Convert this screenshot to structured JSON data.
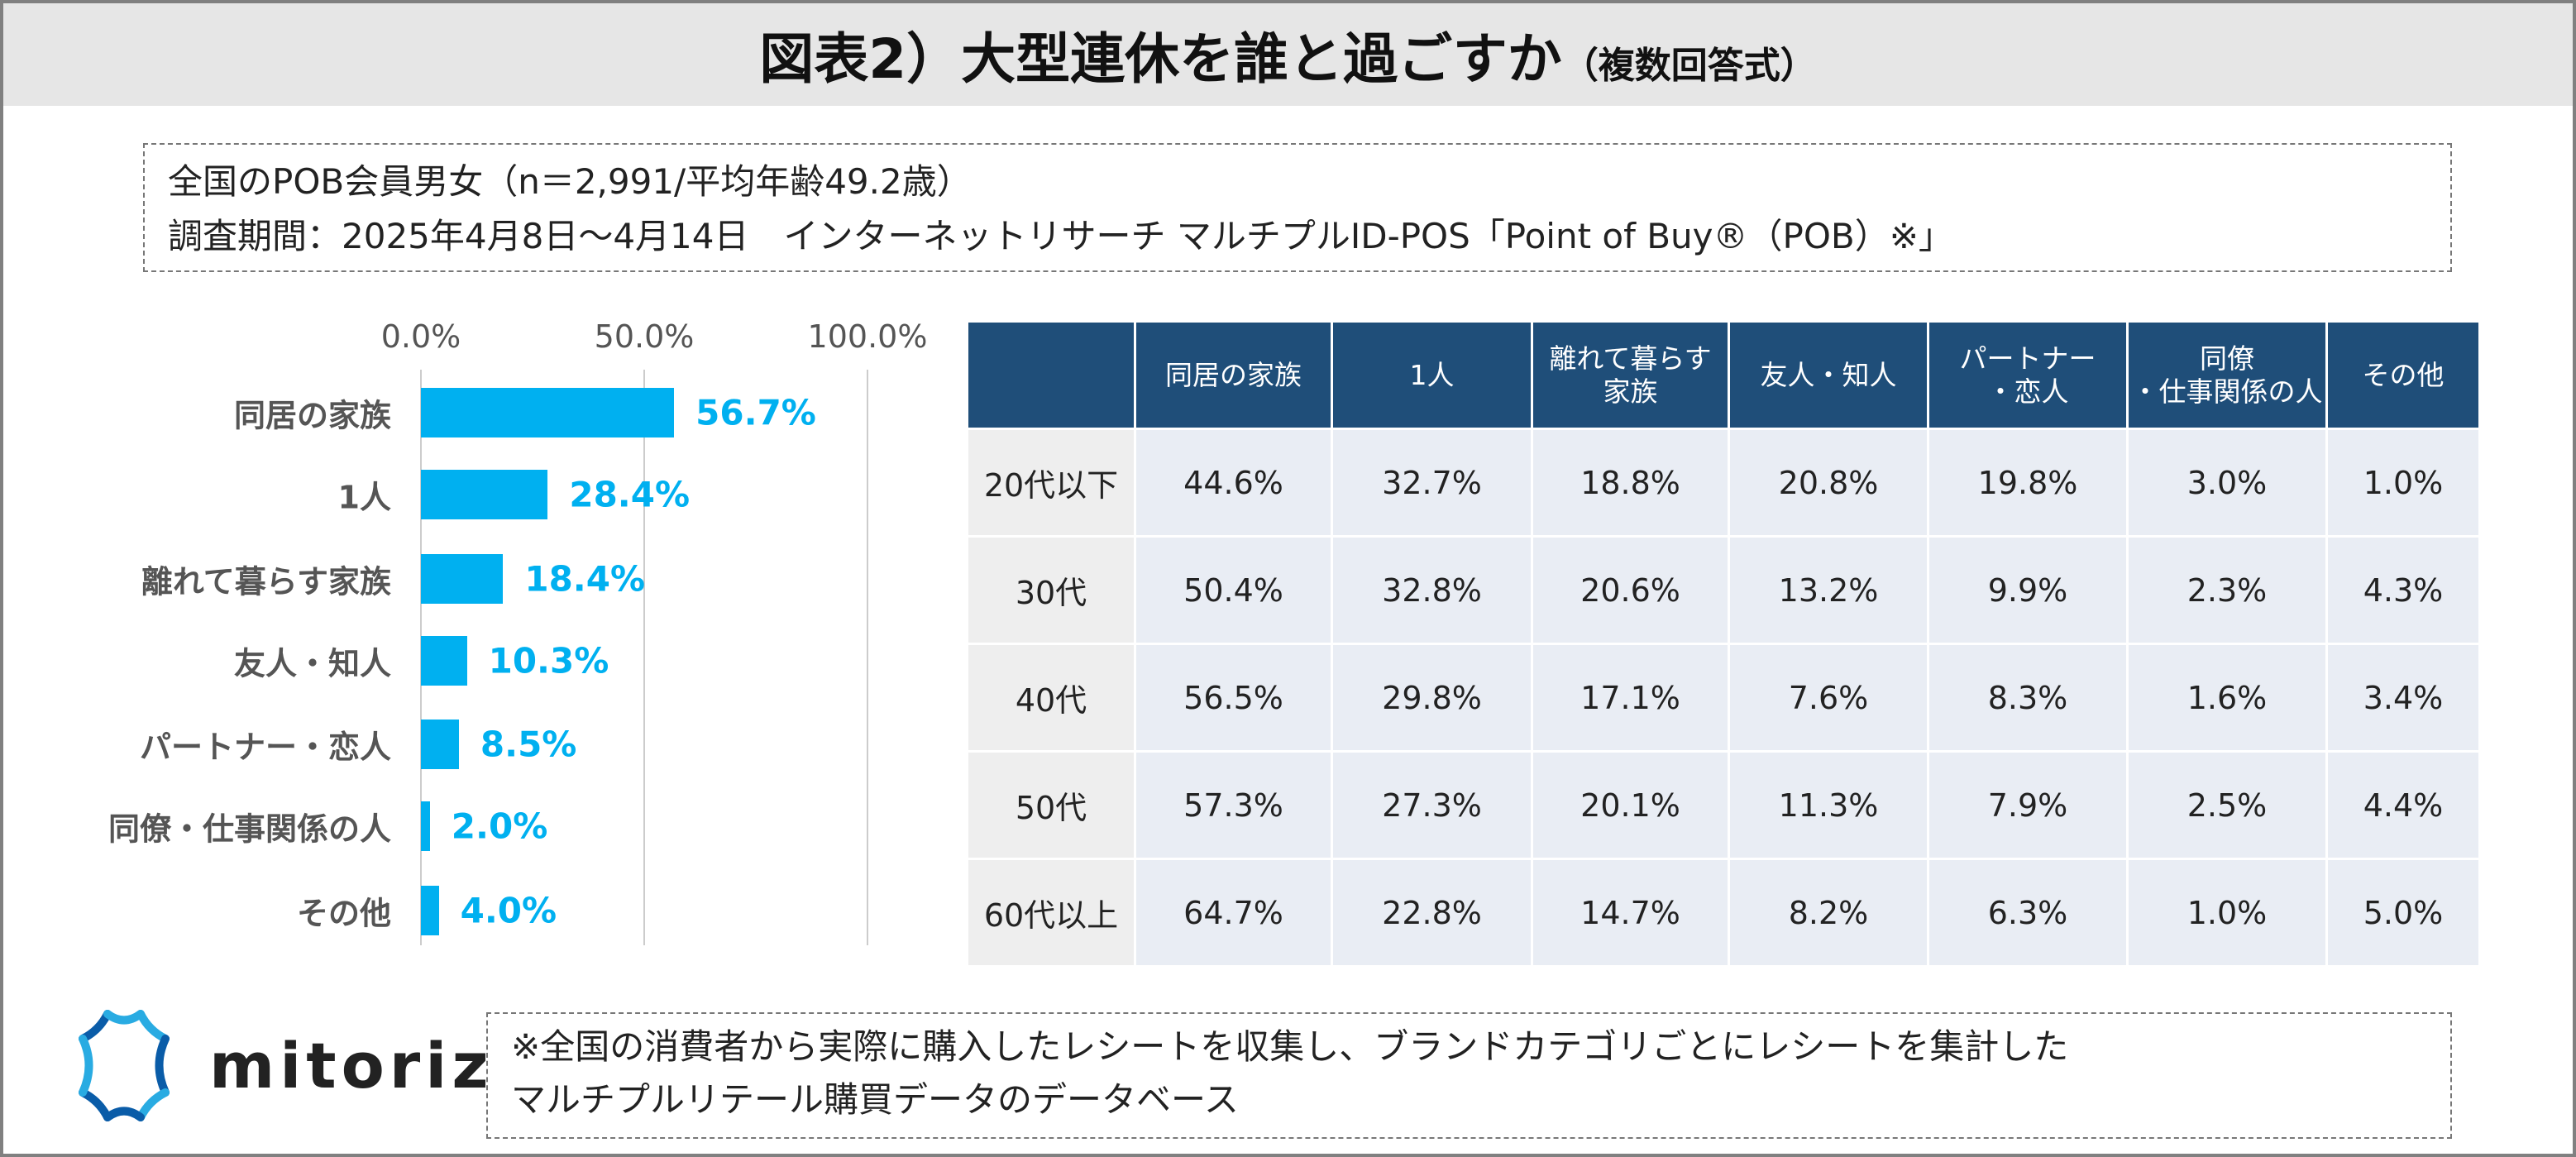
{
  "title": {
    "main": "図表2）大型連休を誰と過ごすか",
    "sub": "（複数回答式）"
  },
  "info": {
    "line1": "全国のPOB会員男女（n＝2,991/平均年齢49.2歳）",
    "line2": "調査期間：2025年4月8日～4月14日　インターネットリサーチ マルチプルID-POS「Point of Buy®（POB）※」"
  },
  "chart_data": {
    "type": "bar",
    "orientation": "horizontal",
    "categories": [
      "同居の家族",
      "1人",
      "離れて暮らす家族",
      "友人・知人",
      "パートナー・恋人",
      "同僚・仕事関係の人",
      "その他"
    ],
    "values": [
      56.7,
      28.4,
      18.4,
      10.3,
      8.5,
      2.0,
      4.0
    ],
    "value_labels": [
      "56.7%",
      "28.4%",
      "18.4%",
      "10.3%",
      "8.5%",
      "2.0%",
      "4.0%"
    ],
    "xticks": [
      "0.0%",
      "50.0%",
      "100.0%"
    ],
    "xlim": [
      0,
      100
    ],
    "color": "#00b0f0"
  },
  "table": {
    "headers": [
      "",
      "同居の家族",
      "1人",
      "離れて暮らす家族",
      "友人・知人",
      "パートナー・恋人",
      "同僚・仕事関係の人",
      "その他"
    ],
    "rows": [
      [
        "20代以下",
        "44.6%",
        "32.7%",
        "18.8%",
        "20.8%",
        "19.8%",
        "3.0%",
        "1.0%"
      ],
      [
        "30代",
        "50.4%",
        "32.8%",
        "20.6%",
        "13.2%",
        "9.9%",
        "2.3%",
        "4.3%"
      ],
      [
        "40代",
        "56.5%",
        "29.8%",
        "17.1%",
        "7.6%",
        "8.3%",
        "1.6%",
        "3.4%"
      ],
      [
        "50代",
        "57.3%",
        "27.3%",
        "20.1%",
        "11.3%",
        "7.9%",
        "2.5%",
        "4.4%"
      ],
      [
        "60代以上",
        "64.7%",
        "22.8%",
        "14.7%",
        "8.2%",
        "6.3%",
        "1.0%",
        "5.0%"
      ]
    ]
  },
  "logo": {
    "text": "mitoriz"
  },
  "note": {
    "line1": "※全国の消費者から実際に購入したレシートを収集し、ブランドカテゴリごとにレシートを集計した",
    "line2": "マルチプルリテール購買データのデータベース"
  }
}
